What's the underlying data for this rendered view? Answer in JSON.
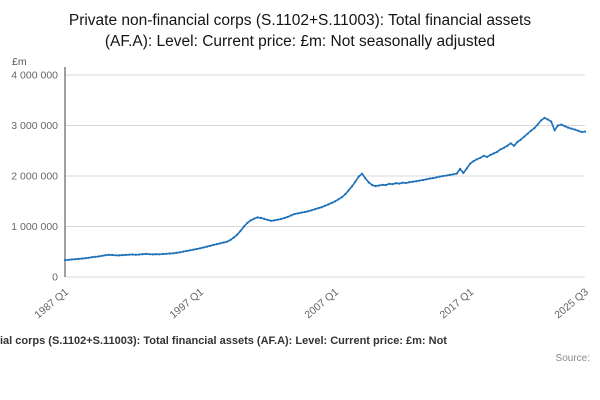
{
  "page": {
    "title": "Private non-financial corps (S.1102+S.11003): Total financial assets (AF.A): Level: Current price: £m: Not seasonally adjusted"
  },
  "footer": {
    "caption": "ial corps (S.1102+S.11003): Total financial assets (AF.A): Level: Current price: £m: Not",
    "source_label": "Source:"
  },
  "chart_data": {
    "type": "line",
    "title": "Private non-financial corps (S.1102+S.11003): Total financial assets (AF.A): Level: Current price: £m: Not seasonally adjusted",
    "xlabel": "",
    "ylabel": "£m",
    "ylim": [
      0,
      4000000
    ],
    "line_color": "#1d70b8",
    "grid_color": "#d9d9d9",
    "axis_color": "#414042",
    "x_start": "1987 Q1",
    "x_end": "2025 Q3",
    "frequency": "quarterly",
    "legend": "none",
    "grid": "horizontal",
    "yticks": [
      {
        "value": 0,
        "label": "0"
      },
      {
        "value": 1000000,
        "label": "1 000 000"
      },
      {
        "value": 2000000,
        "label": "2 000 000"
      },
      {
        "value": 3000000,
        "label": "3 000 000"
      },
      {
        "value": 4000000,
        "label": "4 000 000"
      }
    ],
    "xticks": [
      {
        "index": 0,
        "label": "1987 Q1"
      },
      {
        "index": 40,
        "label": "1997 Q1"
      },
      {
        "index": 80,
        "label": "2007 Q1"
      },
      {
        "index": 120,
        "label": "2017 Q1"
      },
      {
        "index": 154,
        "label": "2025 Q3"
      }
    ],
    "values": [
      335000,
      340000,
      346000,
      352000,
      358000,
      365000,
      372000,
      380000,
      392000,
      400000,
      408000,
      420000,
      432000,
      440000,
      436000,
      430000,
      428000,
      434000,
      438000,
      442000,
      446000,
      440000,
      446000,
      452000,
      458000,
      452000,
      448000,
      452000,
      450000,
      455000,
      460000,
      465000,
      470000,
      480000,
      490000,
      502000,
      515000,
      528000,
      540000,
      554000,
      568000,
      585000,
      600000,
      618000,
      636000,
      652000,
      668000,
      684000,
      700000,
      735000,
      780000,
      840000,
      915000,
      1000000,
      1070000,
      1120000,
      1155000,
      1180000,
      1170000,
      1150000,
      1130000,
      1112000,
      1120000,
      1135000,
      1148000,
      1168000,
      1192000,
      1220000,
      1248000,
      1262000,
      1276000,
      1288000,
      1300000,
      1320000,
      1342000,
      1362000,
      1382000,
      1410000,
      1438000,
      1468000,
      1500000,
      1538000,
      1580000,
      1640000,
      1715000,
      1795000,
      1890000,
      1990000,
      2045000,
      1950000,
      1872000,
      1820000,
      1800000,
      1812000,
      1826000,
      1820000,
      1845000,
      1838000,
      1858000,
      1850000,
      1868000,
      1862000,
      1878000,
      1888000,
      1898000,
      1908000,
      1920000,
      1934000,
      1948000,
      1958000,
      1972000,
      1988000,
      2000000,
      2010000,
      2022000,
      2034000,
      2048000,
      2140000,
      2060000,
      2150000,
      2245000,
      2295000,
      2330000,
      2360000,
      2398000,
      2378000,
      2418000,
      2448000,
      2478000,
      2528000,
      2558000,
      2598000,
      2648000,
      2598000,
      2678000,
      2718000,
      2778000,
      2838000,
      2898000,
      2948000,
      3020000,
      3100000,
      3150000,
      3118000,
      3078000,
      2905000,
      3000000,
      3018000,
      2988000,
      2958000,
      2938000,
      2918000,
      2898000,
      2872000,
      2880000
    ]
  }
}
